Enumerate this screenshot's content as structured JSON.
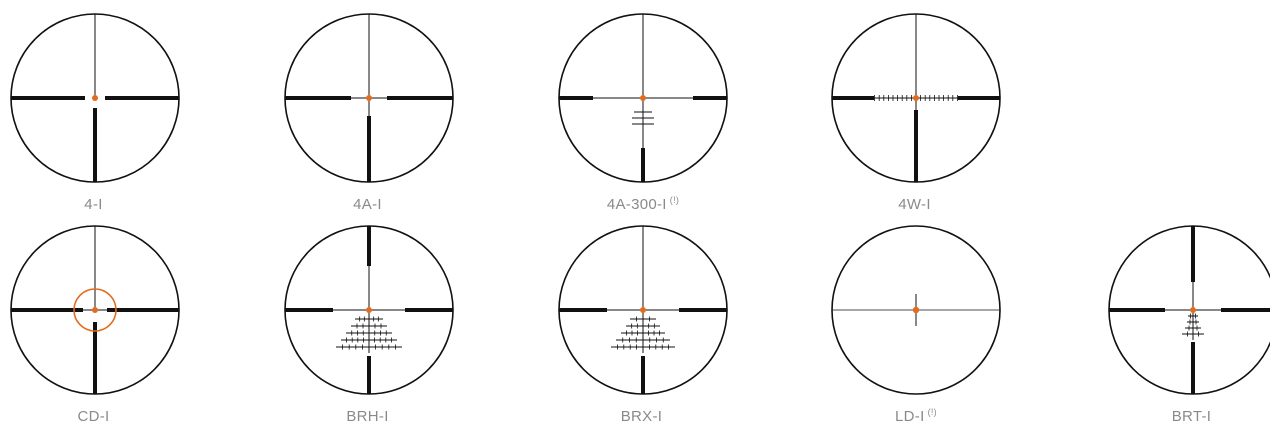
{
  "accent_color": "#e36b1c",
  "line_color": "#111111",
  "label_color": "#8a8a8a",
  "reticles": [
    {
      "name": "4-I",
      "note": "",
      "type": "4-i"
    },
    {
      "name": "4A-I",
      "note": "",
      "type": "4a-i"
    },
    {
      "name": "4A-300-I",
      "note": "(!)",
      "type": "4a-300-i"
    },
    {
      "name": "4W-I",
      "note": "",
      "type": "4w-i"
    },
    {
      "name": "CD-I",
      "note": "",
      "type": "cd-i"
    },
    {
      "name": "BRH-I",
      "note": "",
      "type": "brh-i"
    },
    {
      "name": "BRX-I",
      "note": "",
      "type": "brx-i"
    },
    {
      "name": "LD-I",
      "note": "(!)",
      "type": "ld-i"
    },
    {
      "name": "BRT-I",
      "note": "",
      "type": "brt-i"
    }
  ]
}
